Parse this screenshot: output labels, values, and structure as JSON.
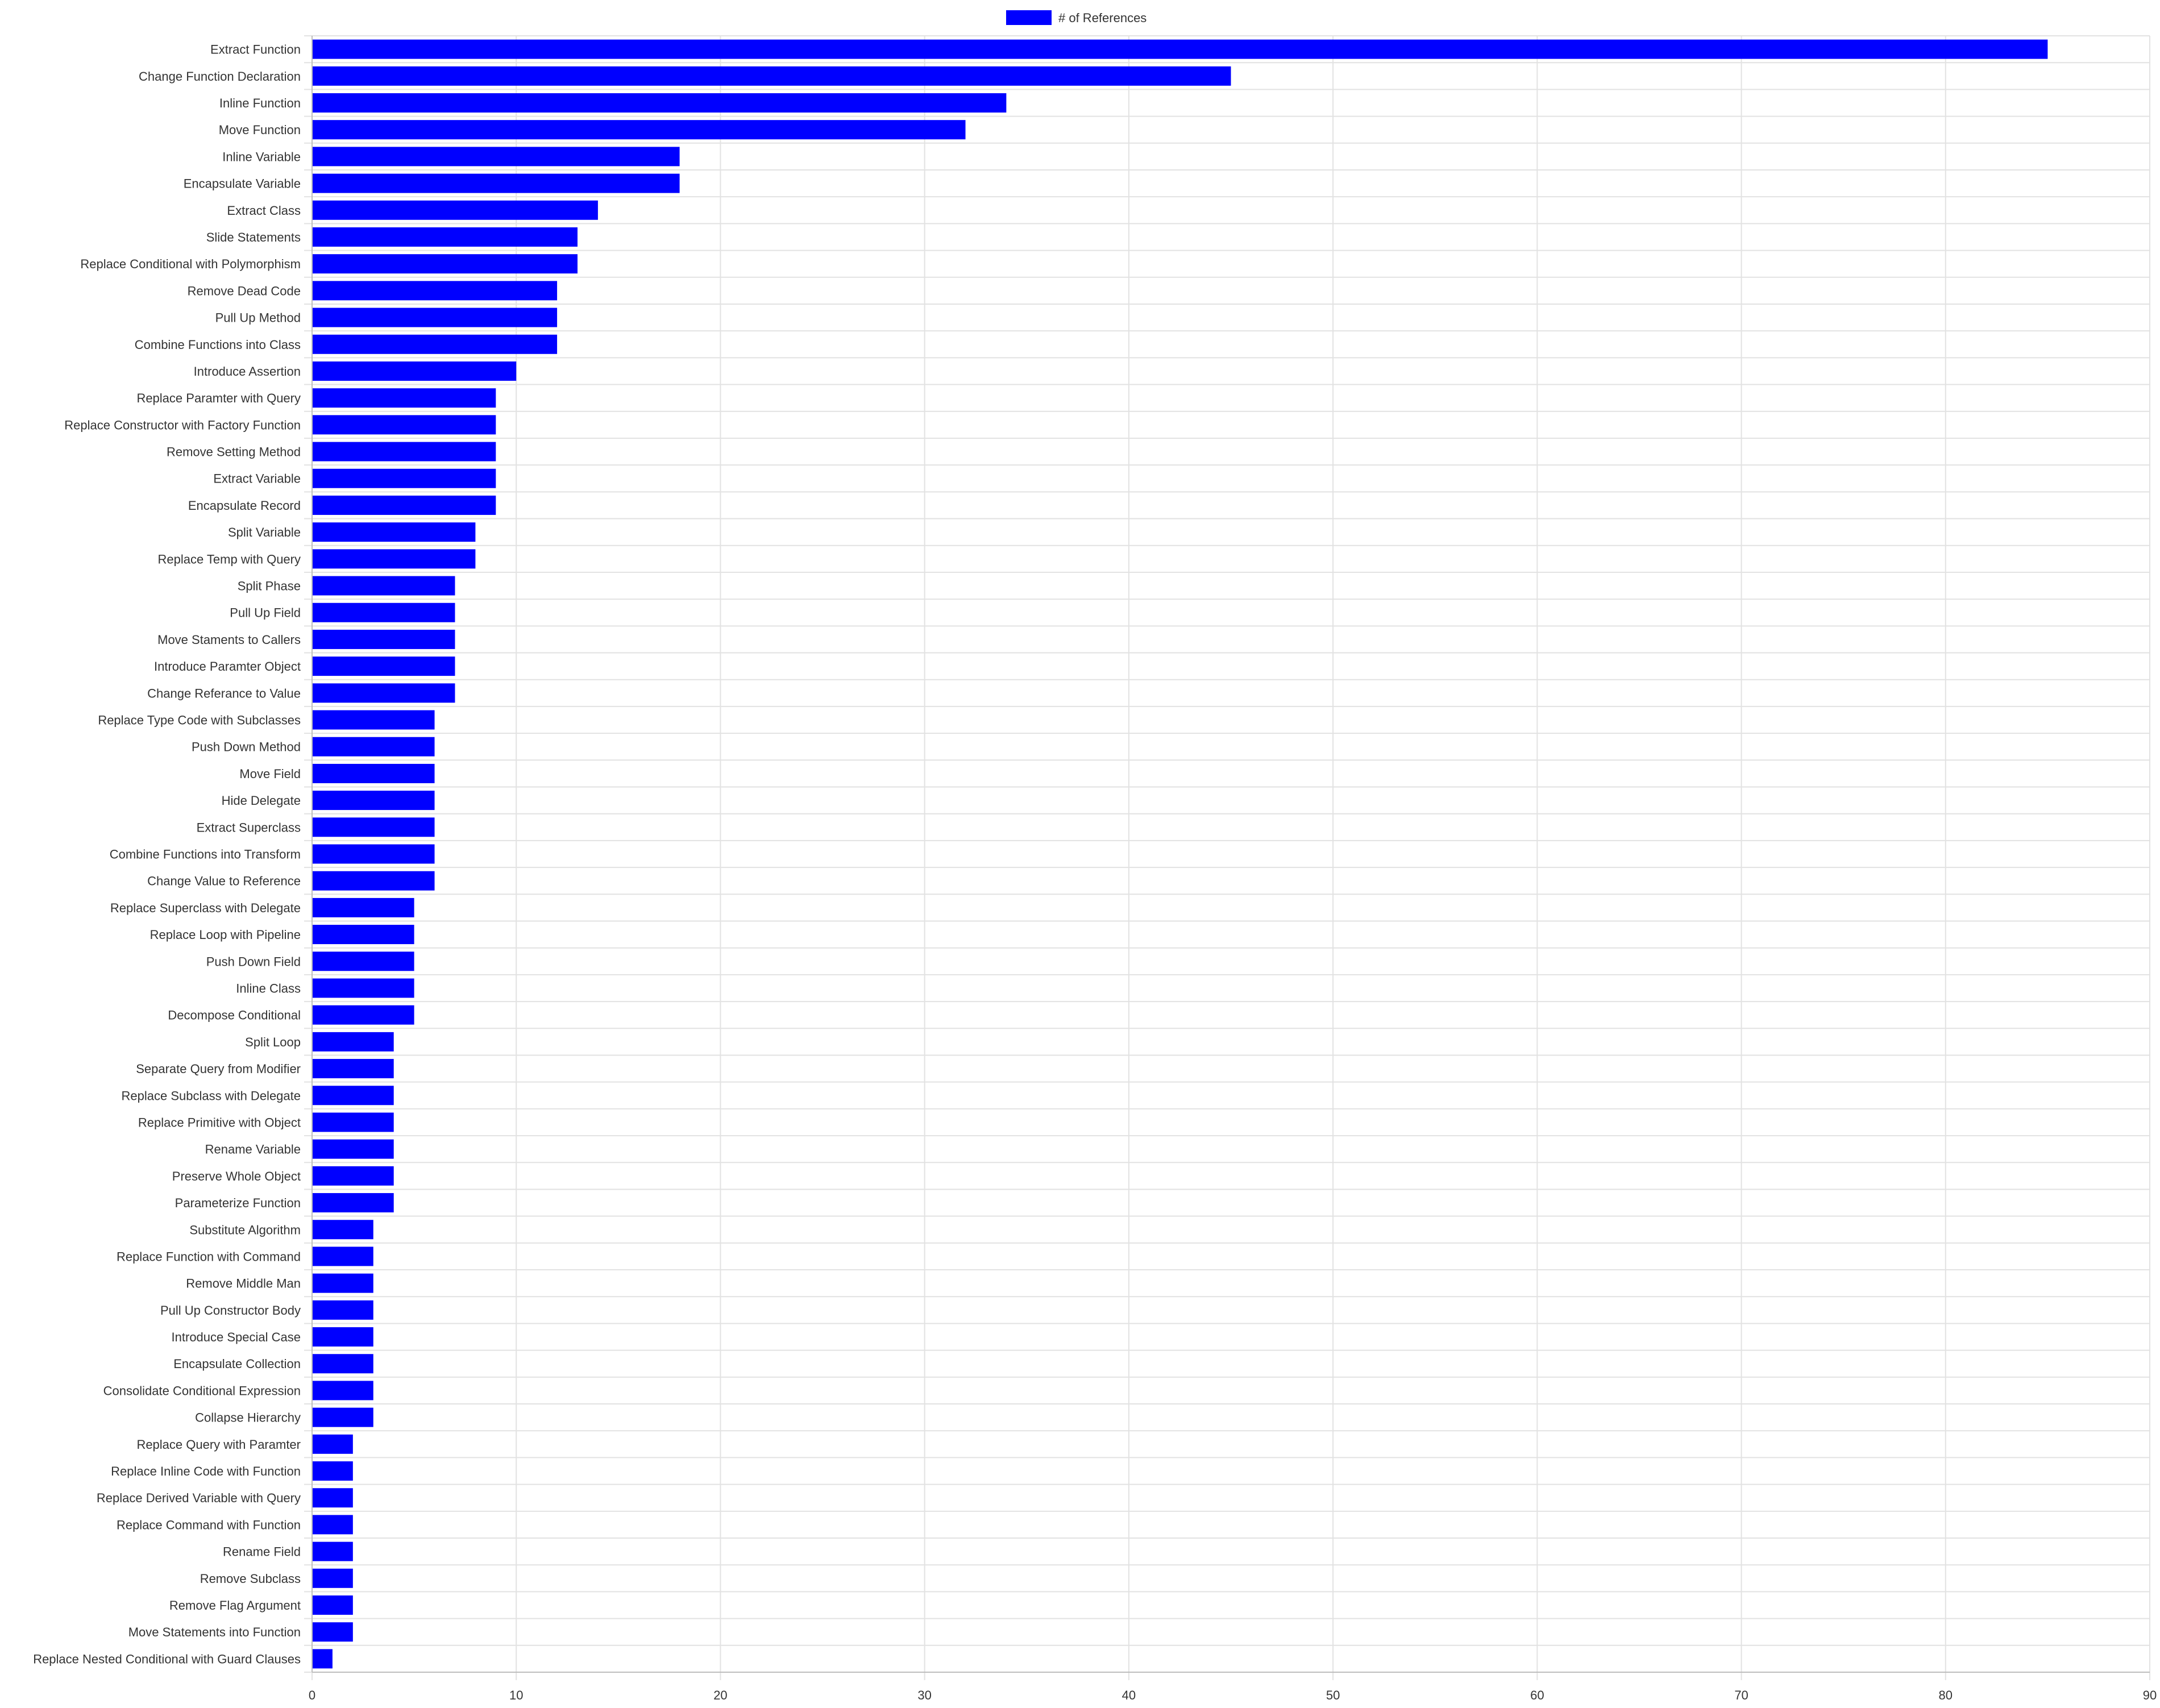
{
  "chart_data": {
    "type": "bar",
    "orientation": "horizontal",
    "legend": {
      "position": "top-center",
      "entries": [
        {
          "label": "# of References",
          "color": "#0000ff"
        }
      ]
    },
    "categories": [
      "Extract Function",
      "Change Function Declaration",
      "Inline Function",
      "Move Function",
      "Inline Variable",
      "Encapsulate Variable",
      "Extract Class",
      "Slide Statements",
      "Replace Conditional with Polymorphism",
      "Remove Dead Code",
      "Pull Up Method",
      "Combine Functions into Class",
      "Introduce Assertion",
      "Replace Paramter with Query",
      "Replace Constructor with Factory Function",
      "Remove Setting Method",
      "Extract Variable",
      "Encapsulate Record",
      "Split Variable",
      "Replace Temp with Query",
      "Split Phase",
      "Pull Up Field",
      "Move Staments to Callers",
      "Introduce Paramter Object",
      "Change Referance to Value",
      "Replace Type Code with Subclasses",
      "Push Down Method",
      "Move Field",
      "Hide Delegate",
      "Extract Superclass",
      "Combine Functions into Transform",
      "Change Value to Reference",
      "Replace Superclass with Delegate",
      "Replace Loop with Pipeline",
      "Push Down Field",
      "Inline Class",
      "Decompose Conditional",
      "Split Loop",
      "Separate Query from Modifier",
      "Replace Subclass with Delegate",
      "Replace Primitive with Object",
      "Rename Variable",
      "Preserve Whole Object",
      "Parameterize Function",
      "Substitute Algorithm",
      "Replace Function with Command",
      "Remove Middle Man",
      "Pull Up Constructor Body",
      "Introduce Special Case",
      "Encapsulate Collection",
      "Consolidate Conditional Expression",
      "Collapse Hierarchy",
      "Replace Query with Paramter",
      "Replace Inline Code with Function",
      "Replace Derived Variable with Query",
      "Replace Command with Function",
      "Rename Field",
      "Remove Subclass",
      "Remove Flag Argument",
      "Move Statements into Function",
      "Replace Nested Conditional with Guard Clauses"
    ],
    "series": [
      {
        "name": "# of References",
        "color": "#0000ff",
        "values": [
          85,
          45,
          34,
          32,
          18,
          18,
          14,
          13,
          13,
          12,
          12,
          12,
          10,
          9,
          9,
          9,
          9,
          9,
          8,
          8,
          7,
          7,
          7,
          7,
          7,
          6,
          6,
          6,
          6,
          6,
          6,
          6,
          5,
          5,
          5,
          5,
          5,
          4,
          4,
          4,
          4,
          4,
          4,
          4,
          3,
          3,
          3,
          3,
          3,
          3,
          3,
          3,
          2,
          2,
          2,
          2,
          2,
          2,
          2,
          2,
          1
        ]
      }
    ],
    "xlim": [
      0,
      90
    ],
    "xticks": [
      0,
      10,
      20,
      30,
      40,
      50,
      60,
      70,
      80,
      90
    ],
    "grid": true,
    "colors": {
      "grid": "#e2e2e2",
      "axis": "#bdbdbd",
      "text": "#333333"
    }
  }
}
